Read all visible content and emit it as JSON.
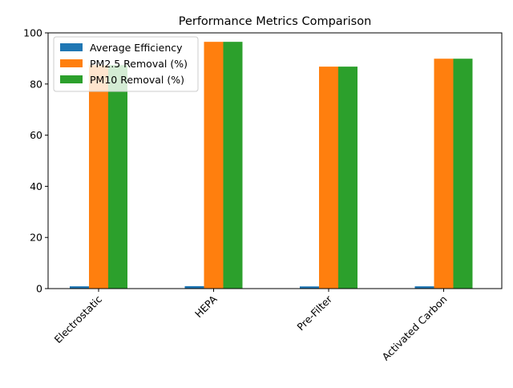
{
  "chart_data": {
    "type": "bar",
    "title": "Performance Metrics Comparison",
    "xlabel": "",
    "ylabel": "",
    "categories": [
      "Electrostatic",
      "HEPA",
      "Pre-Filter",
      "Activated Carbon"
    ],
    "series": [
      {
        "name": "Average Efficiency",
        "color": "#1f77b4",
        "values": [
          0.9,
          0.97,
          0.86,
          0.9
        ]
      },
      {
        "name": "PM2.5 Removal (%)",
        "color": "#ff7f0e",
        "values": [
          87.4,
          96.5,
          86.8,
          89.9
        ]
      },
      {
        "name": "PM10 Removal (%)",
        "color": "#2ca02c",
        "values": [
          87.4,
          96.5,
          86.8,
          89.9
        ]
      }
    ],
    "ylim": [
      0,
      100
    ],
    "yticks": [
      0,
      20,
      40,
      60,
      80,
      100
    ],
    "grid": false,
    "legend_position": "upper-left"
  }
}
